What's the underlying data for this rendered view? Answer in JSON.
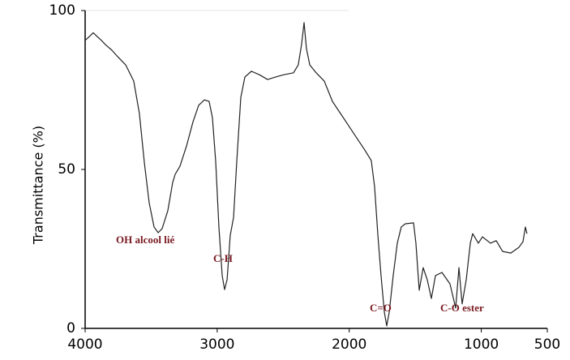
{
  "chart_data": {
    "type": "line",
    "y_label": "Transmittance (%)",
    "x": [
      4000,
      3969,
      3939,
      3908,
      3877,
      3847,
      3797,
      3754,
      3693,
      3632,
      3589,
      3552,
      3515,
      3478,
      3447,
      3417,
      3374,
      3337,
      3318,
      3282,
      3232,
      3183,
      3140,
      3097,
      3061,
      3036,
      3011,
      2987,
      2962,
      2944,
      2925,
      2901,
      2876,
      2852,
      2821,
      2790,
      2741,
      2680,
      2618,
      2557,
      2496,
      2422,
      2386,
      2361,
      2342,
      2324,
      2299,
      2250,
      2189,
      2127,
      2066,
      2005,
      1943,
      1882,
      1833,
      1808,
      1783,
      1759,
      1734,
      1716,
      1697,
      1667,
      1636,
      1606,
      1575,
      1513,
      1495,
      1470,
      1440,
      1409,
      1378,
      1347,
      1298,
      1237,
      1194,
      1169,
      1145,
      1114,
      1083,
      1065,
      1022,
      991,
      930,
      887,
      838,
      776,
      715,
      684,
      666,
      654
    ],
    "series": [
      {
        "name": "Transmittance",
        "color": "#222222",
        "values": [
          90.6,
          91.8,
          93,
          91.8,
          90.6,
          89.3,
          87.5,
          85.5,
          82.9,
          77.8,
          67.6,
          52.3,
          39.5,
          31.9,
          30.1,
          31.4,
          37,
          45.9,
          48.5,
          51,
          57.4,
          65,
          70.2,
          71.9,
          71.4,
          66.3,
          52.3,
          31.9,
          16.6,
          12.2,
          15.3,
          29.3,
          34.9,
          52.3,
          72.7,
          79.1,
          80.9,
          79.8,
          78.3,
          79.1,
          79.8,
          80.4,
          82.9,
          89.3,
          96.2,
          88,
          82.9,
          80.4,
          77.8,
          71.4,
          67.6,
          63.8,
          59.9,
          56.1,
          52.8,
          44.6,
          29.3,
          16.6,
          5.1,
          0.8,
          5.1,
          16.6,
          26.8,
          31.9,
          32.9,
          33.2,
          26.8,
          12,
          19.1,
          15.3,
          9.4,
          16.6,
          17.6,
          14,
          6.4,
          19.1,
          7.7,
          15.3,
          26.8,
          29.8,
          26.8,
          28.8,
          26.8,
          27.6,
          24.2,
          23.7,
          25.5,
          27.3,
          31.9,
          29.8
        ]
      }
    ],
    "xlim": [
      4000,
      500
    ],
    "xticks": [
      4000,
      3000,
      2000,
      1000,
      500
    ],
    "ylim": [
      0,
      100
    ],
    "yticks": [
      0,
      50,
      100
    ],
    "annotations": [
      "OH alcool lié",
      "C-H",
      "C=O",
      "C-O ester"
    ]
  }
}
